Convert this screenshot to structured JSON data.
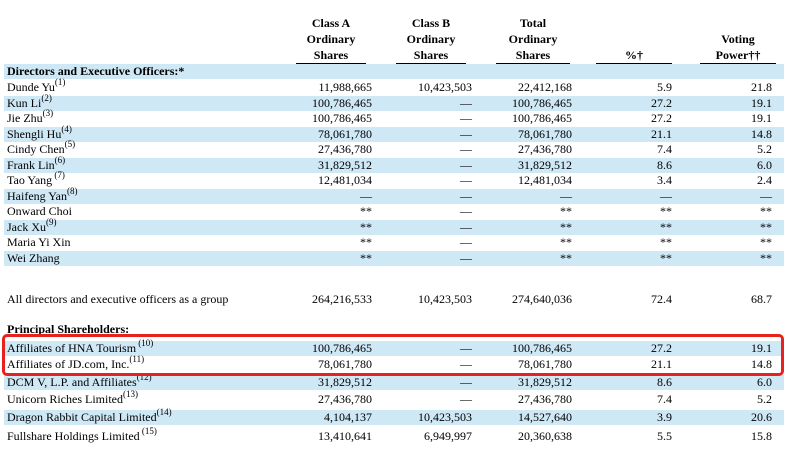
{
  "headers": {
    "class_a": [
      "Class A",
      "Ordinary",
      "Shares"
    ],
    "class_b": [
      "Class B",
      "Ordinary",
      "Shares"
    ],
    "total": [
      "Total",
      "Ordinary",
      "Shares"
    ],
    "percent": "%†",
    "voting": [
      "Voting",
      "Power††"
    ]
  },
  "sections": {
    "directors": "Directors and Executive Officers:*",
    "principal": "Principal Shareholders:"
  },
  "directors": [
    {
      "name": "Dunde Yu",
      "note": "(1)",
      "a": "11,988,665",
      "b": "10,423,503",
      "total": "22,412,168",
      "pct": "5.9",
      "vote": "21.8"
    },
    {
      "name": "Kun Li",
      "note": "(2)",
      "a": "100,786,465",
      "b": "—",
      "total": "100,786,465",
      "pct": "27.2",
      "vote": "19.1"
    },
    {
      "name": "Jie Zhu",
      "note": "(3)",
      "a": "100,786,465",
      "b": "—",
      "total": "100,786,465",
      "pct": "27.2",
      "vote": "19.1"
    },
    {
      "name": "Shengli Hu",
      "note": "(4)",
      "a": "78,061,780",
      "b": "—",
      "total": "78,061,780",
      "pct": "21.1",
      "vote": "14.8"
    },
    {
      "name": "Cindy Chen",
      "note": "(5)",
      "a": "27,436,780",
      "b": "—",
      "total": "27,436,780",
      "pct": "7.4",
      "vote": "5.2"
    },
    {
      "name": "Frank Lin",
      "note": "(6)",
      "a": "31,829,512",
      "b": "—",
      "total": "31,829,512",
      "pct": "8.6",
      "vote": "6.0"
    },
    {
      "name": "Tao Yang",
      "note": " (7)",
      "a": "12,481,034",
      "b": "—",
      "total": "12,481,034",
      "pct": "3.4",
      "vote": "2.4"
    },
    {
      "name": "Haifeng Yan",
      "note": "(8)",
      "a": "—",
      "b": "—",
      "total": "—",
      "pct": "—",
      "vote": "—"
    },
    {
      "name": "Onward Choi",
      "note": "",
      "a": "**",
      "b": "—",
      "total": "**",
      "pct": "**",
      "vote": "**"
    },
    {
      "name": "Jack Xu",
      "note": "(9)",
      "a": "**",
      "b": "—",
      "total": "**",
      "pct": "**",
      "vote": "**"
    },
    {
      "name": "Maria Yi Xin",
      "note": "",
      "a": "**",
      "b": "—",
      "total": "**",
      "pct": "**",
      "vote": "**"
    },
    {
      "name": "Wei Zhang",
      "note": "",
      "a": "**",
      "b": "—",
      "total": "**",
      "pct": "**",
      "vote": "**"
    },
    {
      "name": "All directors and executive officers as a group",
      "note": "",
      "a": "264,216,533",
      "b": "10,423,503",
      "total": "274,640,036",
      "pct": "72.4",
      "vote": "68.7"
    }
  ],
  "principal": [
    {
      "name": "Affiliates of HNA Tourism",
      "note": " (10)",
      "a": "100,786,465",
      "b": "—",
      "total": "100,786,465",
      "pct": "27.2",
      "vote": "19.1"
    },
    {
      "name": "Affiliates of JD.com, Inc.",
      "note": "(11)",
      "a": "78,061,780",
      "b": "—",
      "total": "78,061,780",
      "pct": "21.1",
      "vote": "14.8"
    },
    {
      "name": "DCM V, L.P. and Affiliates",
      "note": "(12)",
      "a": "31,829,512",
      "b": "—",
      "total": "31,829,512",
      "pct": "8.6",
      "vote": "6.0"
    },
    {
      "name": "Unicorn Riches Limited",
      "note": "(13)",
      "a": "27,436,780",
      "b": "—",
      "total": "27,436,780",
      "pct": "7.4",
      "vote": "5.2"
    },
    {
      "name": "Dragon Rabbit Capital Limited",
      "note": "(14)",
      "a": "4,104,137",
      "b": "10,423,503",
      "total": "14,527,640",
      "pct": "3.9",
      "vote": "20.6"
    },
    {
      "name": "Fullshare Holdings Limited",
      "note": " (15)",
      "a": "13,410,641",
      "b": "6,949,997",
      "total": "20,360,638",
      "pct": "5.5",
      "vote": "15.8"
    }
  ],
  "highlight_color": "#e8211f",
  "shade_color": "#cfe8f6"
}
